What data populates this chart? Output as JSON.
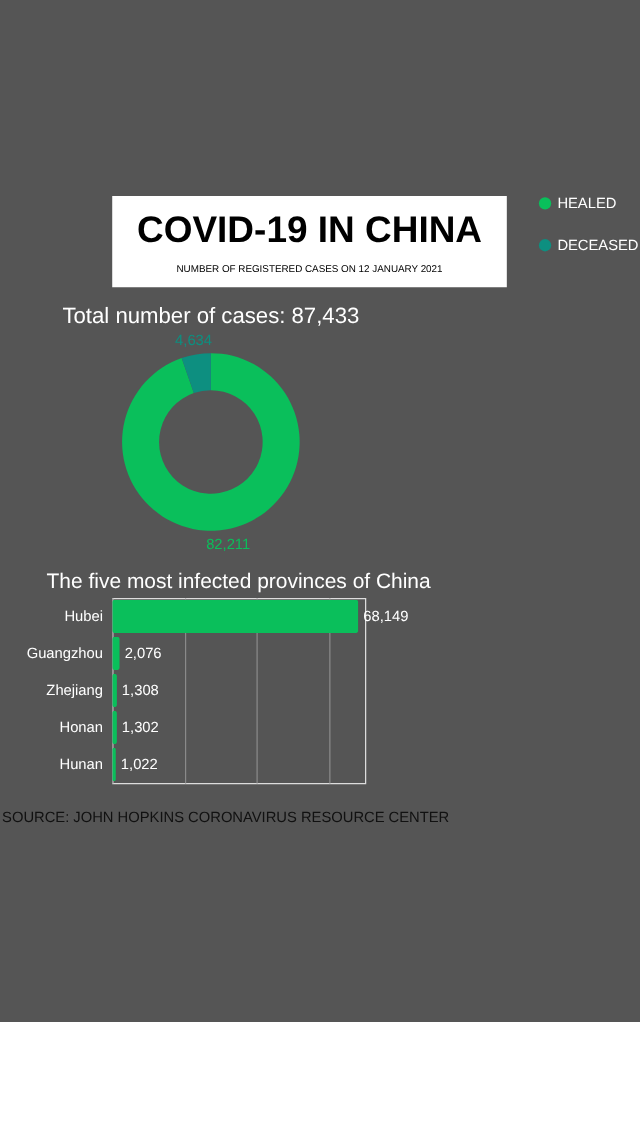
{
  "chart_data": [
    {
      "type": "other",
      "title": "COVID-19 IN CHINA",
      "subtitle": "NUMBER OF REGISTERED CASES ON 12 JANUARY 2021"
    },
    {
      "type": "donut",
      "title": "Total number of cases: 87,433",
      "categories": [
        "HEALED",
        "DECEASED"
      ],
      "values": [
        82211,
        4634
      ],
      "colors": [
        "#0abf5b",
        "#0d8f80"
      ],
      "value_labels": [
        "82,211",
        "4,634"
      ],
      "legend": "right"
    },
    {
      "type": "bar",
      "orientation": "horizontal",
      "title": "The five most infected provinces of China",
      "categories": [
        "Hubei",
        "Guangzhou",
        "Zhejiang",
        "Honan",
        "Hunan"
      ],
      "values": [
        68149,
        2076,
        1308,
        1302,
        1022
      ],
      "color": "#0abf5b",
      "value_labels": [
        "68,149",
        "2,076",
        "1,308",
        "1,302",
        "1,022"
      ],
      "grid": "x",
      "tick_labels": "y",
      "annotations": [
        "SOURCE: JOHN HOPKINS CORONAVIRUS RESOURCE CENTER"
      ]
    }
  ]
}
